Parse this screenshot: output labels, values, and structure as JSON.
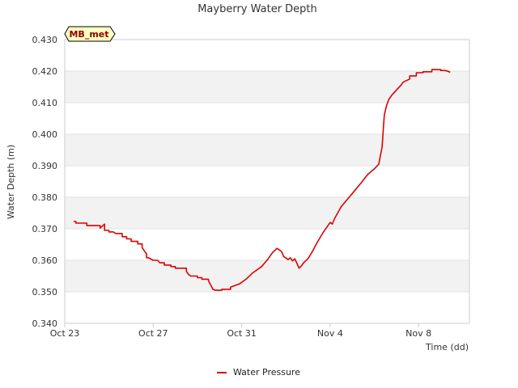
{
  "chart_data": {
    "type": "line",
    "title": "Mayberry Water Depth",
    "xlabel": "Time (dd)",
    "ylabel": "Water Depth (m)",
    "site_badge": "MB_met",
    "ylim": [
      0.34,
      0.43
    ],
    "y_ticks": [
      0.34,
      0.35,
      0.36,
      0.37,
      0.38,
      0.39,
      0.4,
      0.41,
      0.42,
      0.43
    ],
    "y_tick_labels": [
      "0.340",
      "0.350",
      "0.360",
      "0.370",
      "0.380",
      "0.390",
      "0.400",
      "0.410",
      "0.420",
      "0.430"
    ],
    "xlim": [
      0,
      18.3
    ],
    "x_unit": "days since Oct 23",
    "x_ticks": [
      0,
      4,
      8,
      12,
      16
    ],
    "x_tick_labels": [
      "Oct 23",
      "Oct 27",
      "Oct 31",
      "Nov 4",
      "Nov 8"
    ],
    "grid": true,
    "legend_position": "bottom-center",
    "series": [
      {
        "name": "Water Pressure",
        "color": "#dd0000",
        "x": [
          0.4,
          0.5,
          0.5,
          1.0,
          1.0,
          1.6,
          1.6,
          1.8,
          1.8,
          2.0,
          2.0,
          2.2,
          2.3,
          2.6,
          2.6,
          2.8,
          2.8,
          3.0,
          3.0,
          3.3,
          3.3,
          3.5,
          3.5,
          3.7,
          3.7,
          3.8,
          4.0,
          4.2,
          4.3,
          4.5,
          4.5,
          4.8,
          4.8,
          5.0,
          5.0,
          5.5,
          5.5,
          5.6,
          5.7,
          6.0,
          6.0,
          6.2,
          6.2,
          6.5,
          6.5,
          6.7,
          6.8,
          7.1,
          7.1,
          7.5,
          7.5,
          7.9,
          8.2,
          8.5,
          8.9,
          9.2,
          9.4,
          9.6,
          9.8,
          9.9,
          10.1,
          10.2,
          10.3,
          10.4,
          10.5,
          10.6,
          10.7,
          10.8,
          11.0,
          11.2,
          11.4,
          11.7,
          12.0,
          12.1,
          12.2,
          12.3,
          12.5,
          12.8,
          13.1,
          13.4,
          13.7,
          14.0,
          14.2,
          14.35,
          14.45,
          14.55,
          14.65,
          14.8,
          15.0,
          15.2,
          15.3,
          15.6,
          15.6,
          15.9,
          15.9,
          16.2,
          16.2,
          16.6,
          16.6,
          17.0,
          17.0,
          17.2,
          17.4,
          17.4
        ],
        "y": [
          0.3723,
          0.3723,
          0.3718,
          0.3718,
          0.371,
          0.371,
          0.3702,
          0.3715,
          0.3695,
          0.3695,
          0.369,
          0.369,
          0.3685,
          0.3685,
          0.3675,
          0.3675,
          0.3668,
          0.3668,
          0.366,
          0.366,
          0.3652,
          0.3652,
          0.364,
          0.362,
          0.3608,
          0.3608,
          0.36,
          0.36,
          0.3592,
          0.3592,
          0.3585,
          0.3585,
          0.358,
          0.358,
          0.3575,
          0.3575,
          0.3565,
          0.3555,
          0.355,
          0.355,
          0.3545,
          0.3545,
          0.354,
          0.354,
          0.3535,
          0.3508,
          0.3505,
          0.3505,
          0.3508,
          0.3508,
          0.3515,
          0.3525,
          0.354,
          0.356,
          0.358,
          0.3605,
          0.3625,
          0.3638,
          0.3628,
          0.3612,
          0.3602,
          0.3608,
          0.3598,
          0.3605,
          0.359,
          0.3575,
          0.3582,
          0.3592,
          0.3605,
          0.3628,
          0.3655,
          0.369,
          0.372,
          0.3715,
          0.3732,
          0.3745,
          0.377,
          0.3795,
          0.382,
          0.3845,
          0.3872,
          0.389,
          0.3905,
          0.396,
          0.406,
          0.409,
          0.411,
          0.4125,
          0.414,
          0.4155,
          0.4165,
          0.4175,
          0.4185,
          0.4185,
          0.4195,
          0.4195,
          0.4198,
          0.4198,
          0.4205,
          0.4205,
          0.4202,
          0.4202,
          0.4198,
          0.4195
        ]
      }
    ]
  }
}
